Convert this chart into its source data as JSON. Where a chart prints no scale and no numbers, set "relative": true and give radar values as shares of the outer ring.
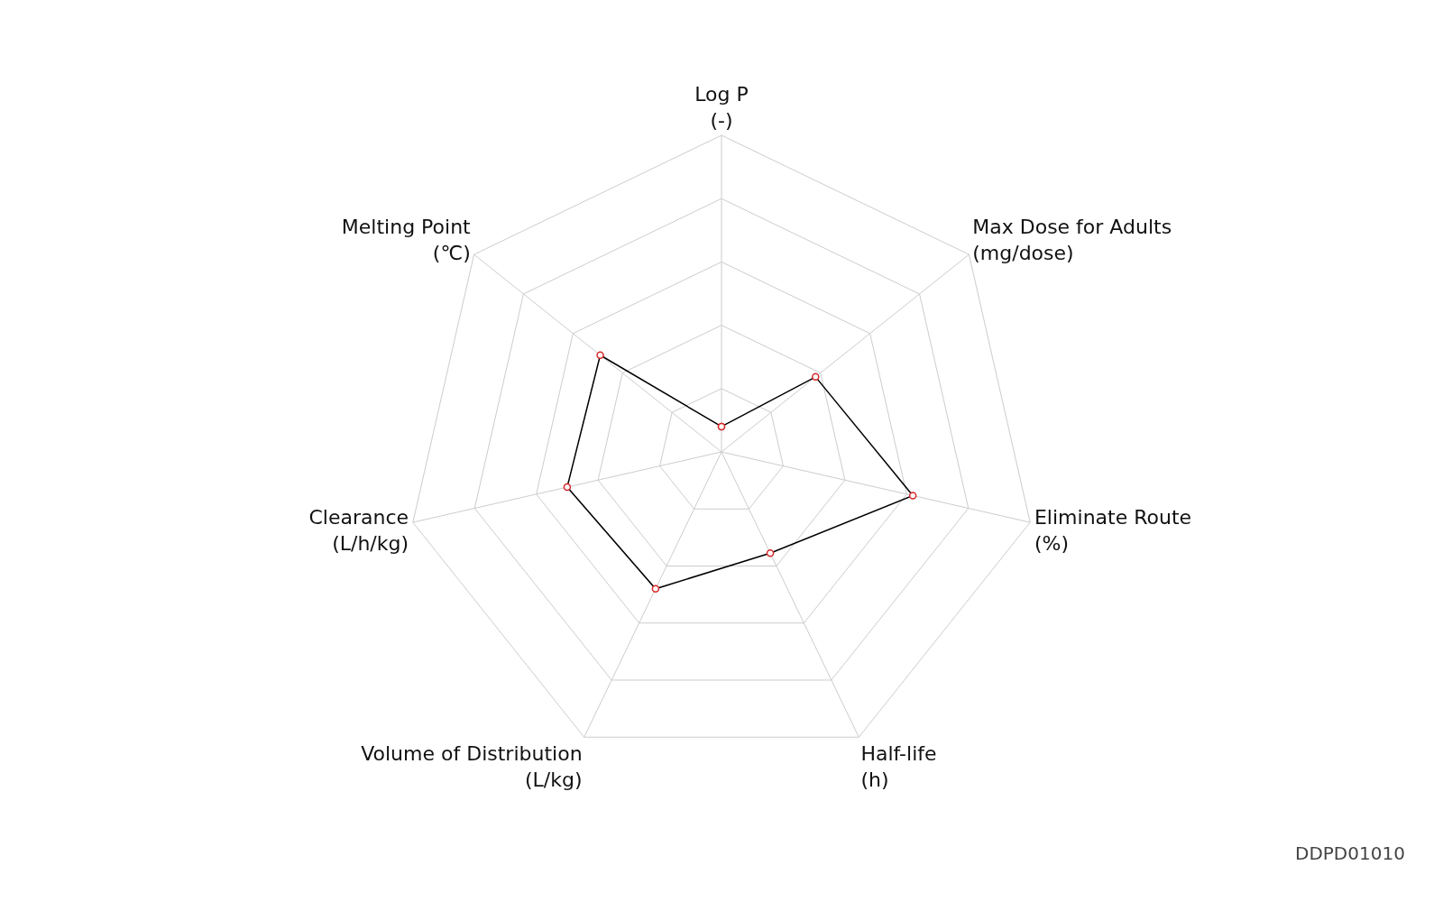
{
  "chart_data": {
    "type": "radar",
    "relative": true,
    "categories": [
      "Log P\n(-)",
      "Max Dose for Adults\n(mg/dose)",
      "Eliminate Route\n(%)",
      "Half-life\n(h)",
      "Volume of Distribution\n(L/kg)",
      "Clearance\n(L/h/kg)",
      "Melting Point\n(℃)"
    ],
    "series": [
      {
        "color": "#000000",
        "values": [
          0.08,
          0.38,
          0.62,
          0.355,
          0.48,
          0.5,
          0.49
        ]
      }
    ],
    "marker": "circle",
    "line_style": "solid",
    "grid": true,
    "annotations": [
      "DDPD01010"
    ]
  }
}
